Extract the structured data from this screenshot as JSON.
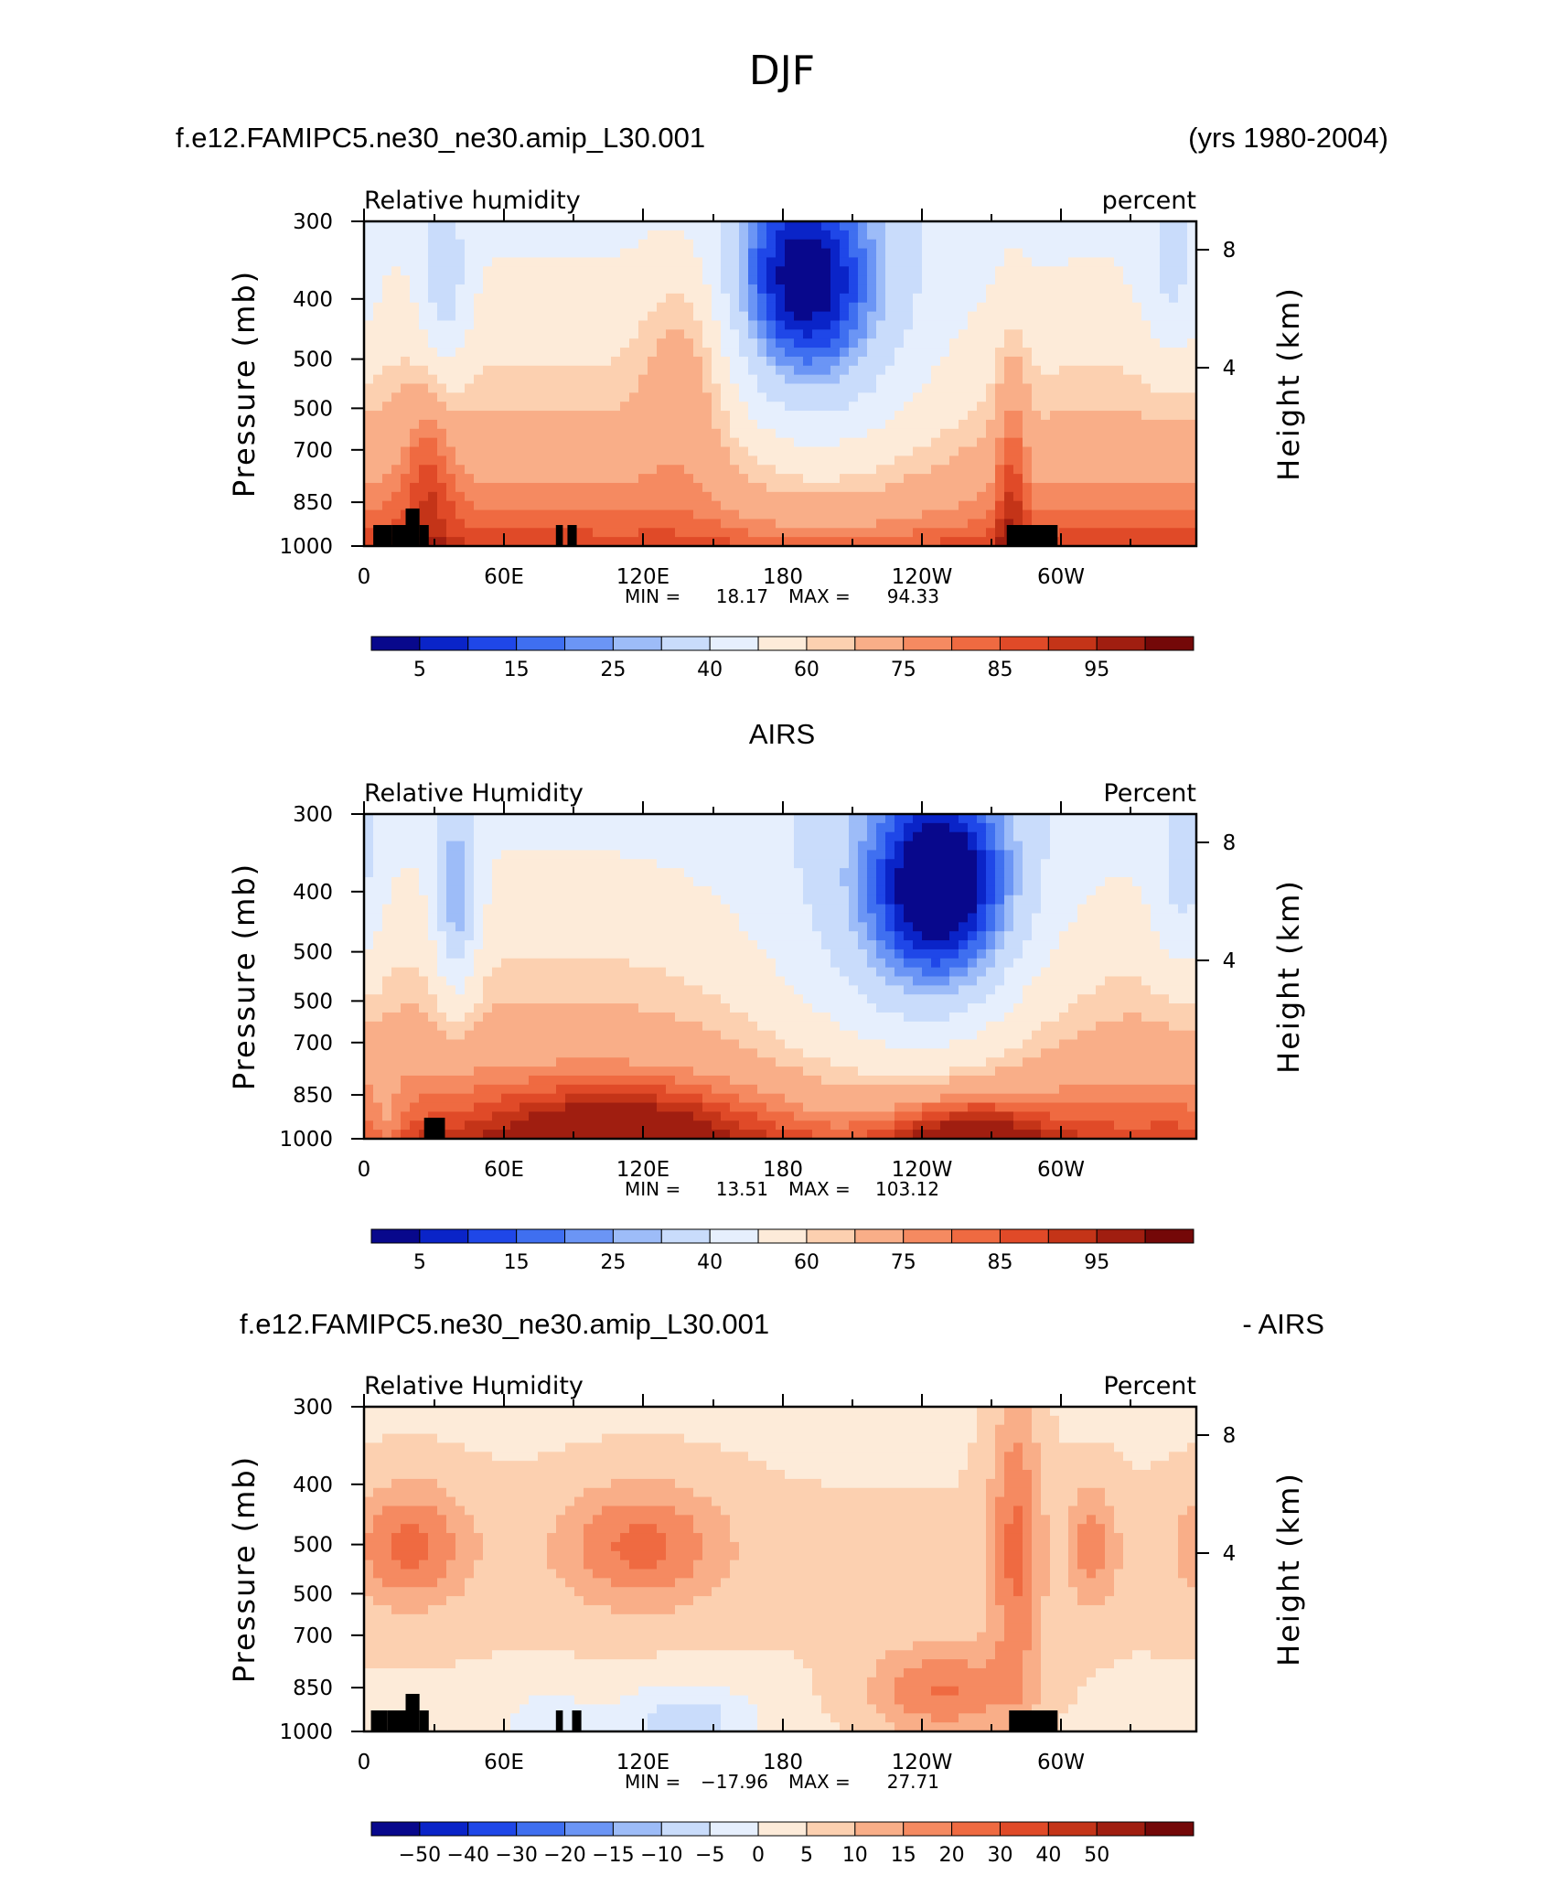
{
  "figure": {
    "title": "DJF",
    "run_label": "f.e12.FAMIPC5.ne30_ne30.amip_L30.001",
    "years": "(yrs 1980-2004)",
    "airs_title": "AIRS",
    "diff_suffix": "- AIRS"
  },
  "colors": {
    "rh_scale": [
      "#08088c",
      "#0a24c8",
      "#1f47e8",
      "#3f6ff0",
      "#6b95f5",
      "#9dbcf8",
      "#c9dcfb",
      "#e6effd",
      "#fdebd9",
      "#fcd0b0",
      "#f9ae88",
      "#f58a61",
      "#ef6a41",
      "#e04a28",
      "#c43418",
      "#a01e10",
      "#740808"
    ],
    "diff_scale": [
      "#08088c",
      "#0a24c8",
      "#1f47e8",
      "#3f6ff0",
      "#6b95f5",
      "#9dbcf8",
      "#c9dcfb",
      "#e6effd",
      "#fdebd9",
      "#fcd0b0",
      "#f9ae88",
      "#f58a61",
      "#ef6a41",
      "#e04a28",
      "#c43418",
      "#a01e10",
      "#740808"
    ],
    "topography": "#000000"
  },
  "chart_data": [
    {
      "type": "heatmap",
      "subtitle_left": "Relative humidity",
      "subtitle_right": "percent",
      "ylabel": "Pressure (mb)",
      "ylabel_right": "Height (km)",
      "x_tick_labels": [
        "0",
        "60E",
        "120E",
        "180",
        "120W",
        "60W"
      ],
      "y_tick_labels": [
        "300",
        "400",
        "500",
        "500",
        "700",
        "850",
        "1000"
      ],
      "right_tick_labels": [
        "8",
        "4"
      ],
      "min_label": "MIN =",
      "min_value": "18.17",
      "max_label": "MAX =",
      "max_value": "94.33",
      "colorbar_labels": [
        "5",
        "15",
        "25",
        "40",
        "60",
        "75",
        "85",
        "95"
      ],
      "scale": "rh",
      "features": [
        {
          "lon": 190,
          "p": 370,
          "amp": -38,
          "slon": 22,
          "sp": 140
        },
        {
          "lon": 200,
          "p": 520,
          "amp": -20,
          "slon": 40,
          "sp": 230
        },
        {
          "lon": 35,
          "p": 400,
          "amp": -18,
          "slon": 8,
          "sp": 120
        },
        {
          "lon": 350,
          "p": 380,
          "amp": -14,
          "slon": 10,
          "sp": 120
        },
        {
          "lon": 140,
          "p": 480,
          "amp": 16,
          "slon": 15,
          "sp": 170
        },
        {
          "lon": 28,
          "p": 760,
          "amp": 14,
          "slon": 8,
          "sp": 130
        },
        {
          "lon": 280,
          "p": 800,
          "amp": 16,
          "slon": 5,
          "sp": 220
        }
      ],
      "masks": [
        [
          4,
          12,
          925,
          1000
        ],
        [
          12,
          18,
          925,
          1000
        ],
        [
          18,
          24,
          870,
          1000
        ],
        [
          24,
          28,
          925,
          1000
        ],
        [
          83,
          86,
          925,
          1000
        ],
        [
          88,
          92,
          925,
          1000
        ],
        [
          278,
          300,
          925,
          1000
        ]
      ]
    },
    {
      "type": "heatmap",
      "title": "AIRS",
      "subtitle_left": "Relative Humidity",
      "subtitle_right": "Percent",
      "ylabel": "Pressure (mb)",
      "ylabel_right": "Height (km)",
      "x_tick_labels": [
        "0",
        "60E",
        "120E",
        "180",
        "120W",
        "60W"
      ],
      "y_tick_labels": [
        "300",
        "400",
        "500",
        "500",
        "700",
        "850",
        "1000"
      ],
      "right_tick_labels": [
        "8",
        "4"
      ],
      "min_label": "MIN =",
      "min_value": "13.51",
      "max_label": "MAX =",
      "max_value": "103.12",
      "colorbar_labels": [
        "5",
        "15",
        "25",
        "40",
        "60",
        "75",
        "85",
        "95"
      ],
      "scale": "rh",
      "features": [
        {
          "lon": 250,
          "p": 390,
          "amp": -44,
          "slon": 22,
          "sp": 140
        },
        {
          "lon": 230,
          "p": 520,
          "amp": -22,
          "slon": 45,
          "sp": 240
        },
        {
          "lon": 40,
          "p": 420,
          "amp": -30,
          "slon": 7,
          "sp": 130
        },
        {
          "lon": 355,
          "p": 400,
          "amp": -16,
          "slon": 10,
          "sp": 140
        },
        {
          "lon": 110,
          "p": 960,
          "amp": 20,
          "slon": 40,
          "sp": 60
        },
        {
          "lon": 260,
          "p": 980,
          "amp": 22,
          "slon": 25,
          "sp": 50
        },
        {
          "lon": 10,
          "p": 980,
          "amp": -10,
          "slon": 6,
          "sp": 60
        }
      ],
      "masks": [
        [
          26,
          35,
          925,
          1000
        ]
      ]
    },
    {
      "type": "heatmap",
      "subtitle_left": "Relative Humidity",
      "subtitle_right": "Percent",
      "ylabel": "Pressure (mb)",
      "ylabel_right": "Height (km)",
      "x_tick_labels": [
        "0",
        "60E",
        "120E",
        "180",
        "120W",
        "60W"
      ],
      "y_tick_labels": [
        "300",
        "400",
        "500",
        "500",
        "700",
        "850",
        "1000"
      ],
      "right_tick_labels": [
        "8",
        "4"
      ],
      "min_label": "MIN =",
      "min_value": "−17.96",
      "max_label": "MAX =",
      "max_value": "27.71",
      "colorbar_labels": [
        "−50",
        "−40",
        "−30",
        "−20",
        "−15",
        "−10",
        "−5",
        "0",
        "5",
        "10",
        "15",
        "20",
        "30",
        "40",
        "50"
      ],
      "scale": "diff",
      "features": [
        {
          "lon": 20,
          "p": 500,
          "amp": 16,
          "slon": 18,
          "sp": 80
        },
        {
          "lon": 120,
          "p": 500,
          "amp": 16,
          "slon": 25,
          "sp": 80
        },
        {
          "lon": 282,
          "p": 500,
          "amp": 16,
          "slon": 8,
          "sp": 200
        },
        {
          "lon": 315,
          "p": 500,
          "amp": 12,
          "slon": 8,
          "sp": 80
        },
        {
          "lon": 250,
          "p": 860,
          "amp": 16,
          "slon": 22,
          "sp": 60
        },
        {
          "lon": 140,
          "p": 960,
          "amp": -12,
          "slon": 22,
          "sp": 50
        },
        {
          "lon": 80,
          "p": 980,
          "amp": -8,
          "slon": 15,
          "sp": 50
        }
      ],
      "masks": [
        [
          3,
          10,
          925,
          1000
        ],
        [
          10,
          18,
          925,
          1000
        ],
        [
          18,
          24,
          870,
          1000
        ],
        [
          24,
          28,
          925,
          1000
        ],
        [
          83,
          86,
          925,
          1000
        ],
        [
          90,
          94,
          925,
          1000
        ],
        [
          279,
          300,
          925,
          1000
        ]
      ]
    }
  ]
}
